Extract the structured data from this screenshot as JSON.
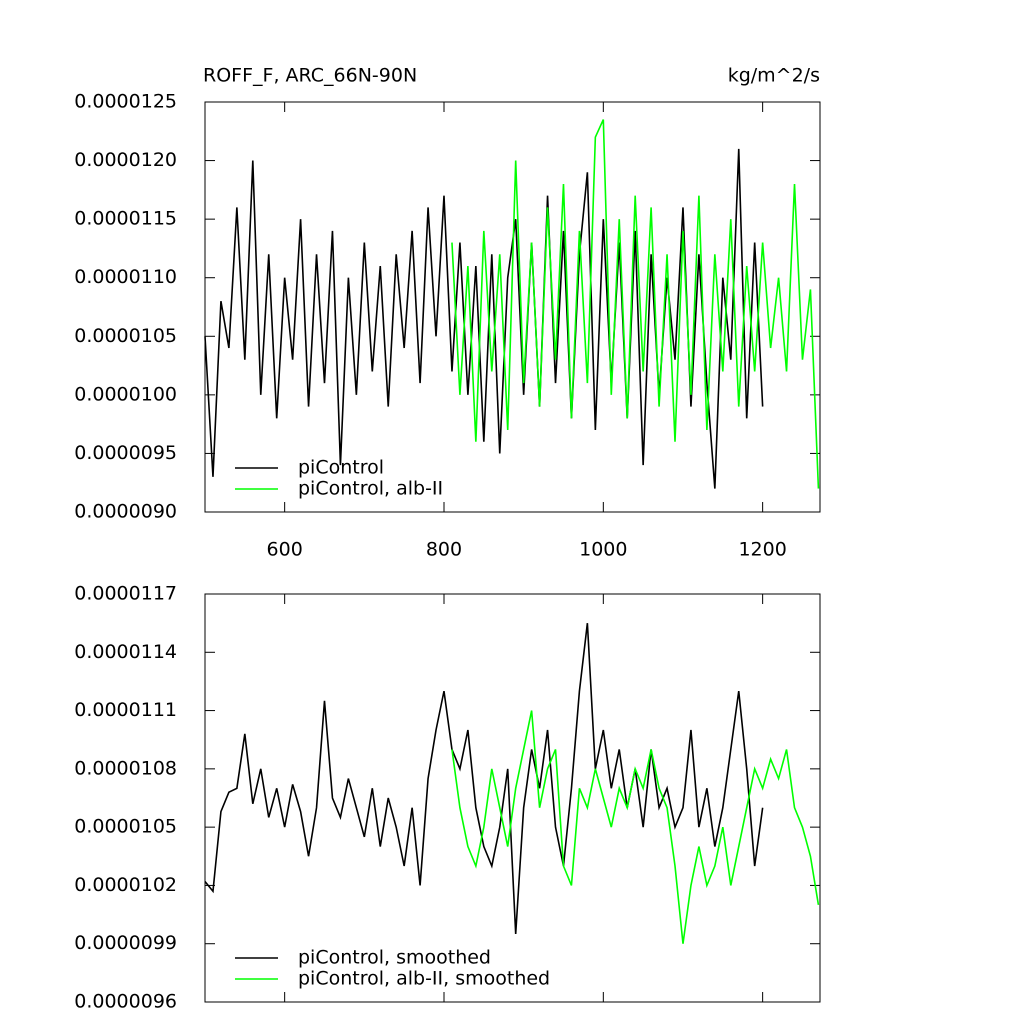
{
  "chart_data": [
    {
      "type": "line",
      "title": "ROFF_F, ARC_66N-90N",
      "subtitle": "kg/m^2/s",
      "x": [
        500,
        510,
        520,
        530,
        540,
        550,
        560,
        570,
        580,
        590,
        600,
        610,
        620,
        630,
        640,
        650,
        660,
        670,
        680,
        690,
        700,
        710,
        720,
        730,
        740,
        750,
        760,
        770,
        780,
        790,
        800,
        810,
        820,
        830,
        840,
        850,
        860,
        870,
        880,
        890,
        900,
        910,
        920,
        930,
        940,
        950,
        960,
        970,
        980,
        990,
        1000,
        1010,
        1020,
        1030,
        1040,
        1050,
        1060,
        1070,
        1080,
        1090,
        1100,
        1110,
        1120,
        1130,
        1140,
        1150,
        1160,
        1170,
        1180,
        1190,
        1200,
        1210,
        1220,
        1230,
        1240,
        1250,
        1260,
        1270
      ],
      "series": [
        {
          "name": "piControl",
          "color": "#000000",
          "values": [
            1.05e-05,
            9.3e-06,
            1.08e-05,
            1.04e-05,
            1.16e-05,
            1.03e-05,
            1.2e-05,
            1e-05,
            1.12e-05,
            9.8e-06,
            1.1e-05,
            1.03e-05,
            1.15e-05,
            9.9e-06,
            1.12e-05,
            1.01e-05,
            1.14e-05,
            9.4e-06,
            1.1e-05,
            1e-05,
            1.13e-05,
            1.02e-05,
            1.11e-05,
            9.9e-06,
            1.12e-05,
            1.04e-05,
            1.14e-05,
            1.01e-05,
            1.16e-05,
            1.05e-05,
            1.17e-05,
            1.02e-05,
            1.13e-05,
            1e-05,
            1.11e-05,
            9.6e-06,
            1.12e-05,
            9.5e-06,
            1.1e-05,
            1.15e-05,
            1e-05,
            1.13e-05,
            9.9e-06,
            1.17e-05,
            1.01e-05,
            1.14e-05,
            9.8e-06,
            1.12e-05,
            1.19e-05,
            9.7e-06,
            1.15e-05,
            1.01e-05,
            1.13e-05,
            9.8e-06,
            1.14e-05,
            9.4e-06,
            1.12e-05,
            1e-05,
            1.1e-05,
            1.03e-05,
            1.16e-05,
            9.9e-06,
            1.12e-05,
            1.01e-05,
            9.2e-06,
            1.1e-05,
            1.03e-05,
            1.21e-05,
            9.8e-06,
            1.13e-05,
            9.9e-06,
            null,
            null,
            null,
            null,
            null,
            null,
            null
          ]
        },
        {
          "name": "piControl, alb-II",
          "color": "#00ff00",
          "values": [
            null,
            null,
            null,
            null,
            null,
            null,
            null,
            null,
            null,
            null,
            null,
            null,
            null,
            null,
            null,
            null,
            null,
            null,
            null,
            null,
            null,
            null,
            null,
            null,
            null,
            null,
            null,
            null,
            null,
            null,
            null,
            1.13e-05,
            1e-05,
            1.11e-05,
            9.6e-06,
            1.14e-05,
            1.02e-05,
            1.12e-05,
            9.7e-06,
            1.2e-05,
            1.01e-05,
            1.13e-05,
            9.9e-06,
            1.16e-05,
            1.03e-05,
            1.18e-05,
            9.8e-06,
            1.14e-05,
            1.01e-05,
            1.22e-05,
            1.235e-05,
            1e-05,
            1.15e-05,
            9.8e-06,
            1.17e-05,
            1.02e-05,
            1.16e-05,
            9.9e-06,
            1.12e-05,
            9.6e-06,
            1.14e-05,
            1e-05,
            1.17e-05,
            9.7e-06,
            1.12e-05,
            1.02e-05,
            1.15e-05,
            9.9e-06,
            1.11e-05,
            1.02e-05,
            1.13e-05,
            1.04e-05,
            1.1e-05,
            1.02e-05,
            1.18e-05,
            1.03e-05,
            1.09e-05,
            9.2e-06
          ]
        }
      ],
      "xlim": [
        500,
        1272
      ],
      "xticks": [
        600,
        800,
        1000,
        1200
      ],
      "show_xtick_labels": true,
      "ylim": [
        9e-06,
        1.25e-05
      ],
      "yticks": [
        {
          "value": 9e-06,
          "label": "0.0000090"
        },
        {
          "value": 9.5e-06,
          "label": "0.0000095"
        },
        {
          "value": 1e-05,
          "label": "0.0000100"
        },
        {
          "value": 1.05e-05,
          "label": "0.0000105"
        },
        {
          "value": 1.1e-05,
          "label": "0.0000110"
        },
        {
          "value": 1.15e-05,
          "label": "0.0000115"
        },
        {
          "value": 1.2e-05,
          "label": "0.0000120"
        },
        {
          "value": 1.25e-05,
          "label": "0.0000125"
        }
      ],
      "legend": "lower left"
    },
    {
      "type": "line",
      "x": [
        500,
        510,
        520,
        530,
        540,
        550,
        560,
        570,
        580,
        590,
        600,
        610,
        620,
        630,
        640,
        650,
        660,
        670,
        680,
        690,
        700,
        710,
        720,
        730,
        740,
        750,
        760,
        770,
        780,
        790,
        800,
        810,
        820,
        830,
        840,
        850,
        860,
        870,
        880,
        890,
        900,
        910,
        920,
        930,
        940,
        950,
        960,
        970,
        980,
        990,
        1000,
        1010,
        1020,
        1030,
        1040,
        1050,
        1060,
        1070,
        1080,
        1090,
        1100,
        1110,
        1120,
        1130,
        1140,
        1150,
        1160,
        1170,
        1180,
        1190,
        1200,
        1210,
        1220,
        1230,
        1240,
        1250,
        1260,
        1270
      ],
      "series": [
        {
          "name": "piControl, smoothed",
          "color": "#000000",
          "values": [
            1.022e-05,
            1.017e-05,
            1.058e-05,
            1.068e-05,
            1.07e-05,
            1.098e-05,
            1.062e-05,
            1.08e-05,
            1.055e-05,
            1.07e-05,
            1.05e-05,
            1.072e-05,
            1.058e-05,
            1.035e-05,
            1.06e-05,
            1.115e-05,
            1.065e-05,
            1.055e-05,
            1.075e-05,
            1.06e-05,
            1.045e-05,
            1.07e-05,
            1.04e-05,
            1.065e-05,
            1.05e-05,
            1.03e-05,
            1.06e-05,
            1.02e-05,
            1.075e-05,
            1.1e-05,
            1.12e-05,
            1.09e-05,
            1.08e-05,
            1.1e-05,
            1.06e-05,
            1.04e-05,
            1.03e-05,
            1.05e-05,
            1.08e-05,
            9.95e-06,
            1.06e-05,
            1.09e-05,
            1.07e-05,
            1.1e-05,
            1.05e-05,
            1.03e-05,
            1.07e-05,
            1.12e-05,
            1.155e-05,
            1.08e-05,
            1.1e-05,
            1.07e-05,
            1.09e-05,
            1.06e-05,
            1.08e-05,
            1.05e-05,
            1.09e-05,
            1.06e-05,
            1.07e-05,
            1.05e-05,
            1.06e-05,
            1.1e-05,
            1.05e-05,
            1.07e-05,
            1.04e-05,
            1.06e-05,
            1.09e-05,
            1.12e-05,
            1.08e-05,
            1.03e-05,
            1.06e-05,
            null,
            null,
            null,
            null,
            null,
            null,
            null
          ]
        },
        {
          "name": "piControl, alb-II, smoothed",
          "color": "#00ff00",
          "values": [
            null,
            null,
            null,
            null,
            null,
            null,
            null,
            null,
            null,
            null,
            null,
            null,
            null,
            null,
            null,
            null,
            null,
            null,
            null,
            null,
            null,
            null,
            null,
            null,
            null,
            null,
            null,
            null,
            null,
            null,
            null,
            1.09e-05,
            1.06e-05,
            1.04e-05,
            1.03e-05,
            1.05e-05,
            1.08e-05,
            1.06e-05,
            1.04e-05,
            1.07e-05,
            1.09e-05,
            1.11e-05,
            1.06e-05,
            1.08e-05,
            1.09e-05,
            1.03e-05,
            1.02e-05,
            1.07e-05,
            1.06e-05,
            1.08e-05,
            1.065e-05,
            1.05e-05,
            1.07e-05,
            1.06e-05,
            1.08e-05,
            1.07e-05,
            1.09e-05,
            1.07e-05,
            1.06e-05,
            1.03e-05,
            9.9e-06,
            1.02e-05,
            1.04e-05,
            1.02e-05,
            1.03e-05,
            1.05e-05,
            1.02e-05,
            1.04e-05,
            1.06e-05,
            1.08e-05,
            1.07e-05,
            1.085e-05,
            1.075e-05,
            1.09e-05,
            1.06e-05,
            1.05e-05,
            1.035e-05,
            1.01e-05
          ]
        }
      ],
      "xlim": [
        500,
        1272
      ],
      "xticks": [
        600,
        800,
        1000,
        1200
      ],
      "show_xtick_labels": false,
      "ylim": [
        9.6e-06,
        1.17e-05
      ],
      "yticks": [
        {
          "value": 9.6e-06,
          "label": "0.0000096"
        },
        {
          "value": 9.9e-06,
          "label": "0.0000099"
        },
        {
          "value": 1.02e-05,
          "label": "0.0000102"
        },
        {
          "value": 1.05e-05,
          "label": "0.0000105"
        },
        {
          "value": 1.08e-05,
          "label": "0.0000108"
        },
        {
          "value": 1.11e-05,
          "label": "0.0000111"
        },
        {
          "value": 1.14e-05,
          "label": "0.0000114"
        },
        {
          "value": 1.17e-05,
          "label": "0.0000117"
        }
      ],
      "legend": "lower left"
    }
  ]
}
